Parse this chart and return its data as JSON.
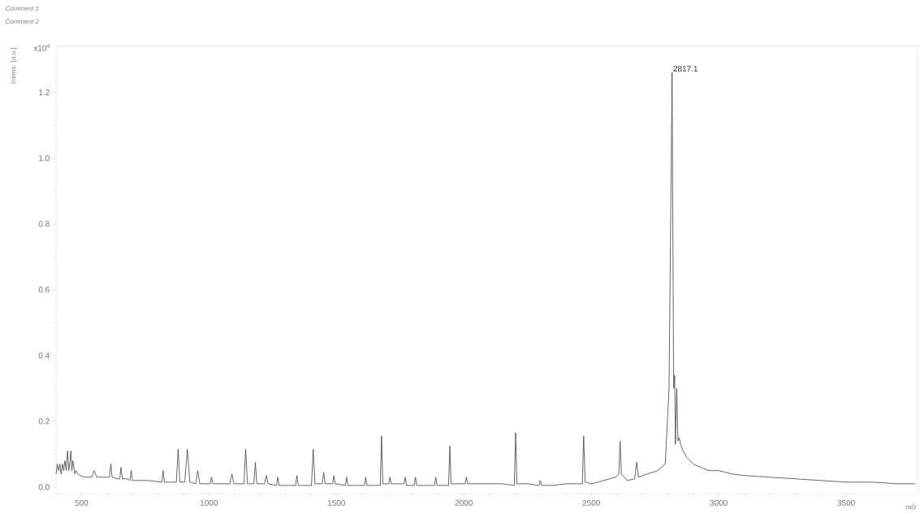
{
  "chart_data": {
    "type": "line",
    "title": "Comment 1",
    "subtitle": "Comment 2",
    "xlabel": "m/z",
    "ylabel": "Intens. [a.u.]",
    "annotations": [
      "x10$^{4}$",
      {
        "text": "2817.1",
        "x": 2817.1,
        "y": 1.26
      }
    ],
    "xlim": [
      400,
      3780
    ],
    "ylim": [
      -0.02,
      1.34
    ],
    "xticks": [
      500,
      1000,
      1500,
      2000,
      2500,
      3000,
      3500
    ],
    "yticks": [
      {
        "value": 0,
        "label": "0.0"
      },
      {
        "value": 0.2,
        "label": "0.2"
      },
      {
        "value": 0.4,
        "label": "0.4"
      },
      {
        "value": 0.6,
        "label": "0.6"
      },
      {
        "value": 0.8,
        "label": "0.8"
      },
      {
        "value": 1.0,
        "label": "1.0"
      },
      {
        "value": 1.2,
        "label": "1.2"
      }
    ],
    "grid": false,
    "marker": "none",
    "line_style": "solid",
    "series": [
      {
        "color": "#404040",
        "x": [
          400,
          405,
          410,
          415,
          420,
          425,
          430,
          435,
          440,
          445,
          450,
          455,
          458,
          462,
          466,
          470,
          474,
          478,
          485,
          495,
          510,
          540,
          550,
          560,
          590,
          610,
          615,
          620,
          640,
          650,
          655,
          660,
          680,
          690,
          695,
          700,
          760,
          815,
          820,
          825,
          872,
          879,
          886,
          905,
          915,
          925,
          948,
          956,
          964,
          1005,
          1010,
          1015,
          1082,
          1090,
          1098,
          1137,
          1144,
          1151,
          1176,
          1182,
          1188,
          1218,
          1225,
          1232,
          1265,
          1270,
          1275,
          1340,
          1345,
          1350,
          1402,
          1409,
          1416,
          1444,
          1450,
          1456,
          1485,
          1490,
          1495,
          1535,
          1540,
          1545,
          1610,
          1615,
          1620,
          1672,
          1677,
          1682,
          1705,
          1710,
          1715,
          1765,
          1770,
          1775,
          1805,
          1810,
          1815,
          1885,
          1890,
          1895,
          1940,
          1945,
          1950,
          2005,
          2010,
          2015,
          2100,
          2150,
          2198,
          2203,
          2208,
          2250,
          2295,
          2300,
          2305,
          2350,
          2400,
          2465,
          2470,
          2476,
          2500,
          2550,
          2595,
          2608,
          2613,
          2618,
          2640,
          2670,
          2678,
          2685,
          2720,
          2760,
          2790,
          2805,
          2817,
          2823,
          2827,
          2830,
          2835,
          2840,
          2845,
          2850,
          2860,
          2875,
          2900,
          2930,
          2960,
          3000,
          3050,
          3100,
          3200,
          3300,
          3400,
          3500,
          3600,
          3700,
          3770
        ],
        "values": [
          0.04,
          0.07,
          0.05,
          0.07,
          0.04,
          0.07,
          0.05,
          0.08,
          0.05,
          0.11,
          0.05,
          0.08,
          0.11,
          0.05,
          0.08,
          0.06,
          0.04,
          0.05,
          0.04,
          0.035,
          0.03,
          0.03,
          0.05,
          0.03,
          0.03,
          0.03,
          0.07,
          0.03,
          0.025,
          0.025,
          0.06,
          0.025,
          0.025,
          0.02,
          0.05,
          0.02,
          0.02,
          0.015,
          0.05,
          0.015,
          0.015,
          0.115,
          0.015,
          0.015,
          0.115,
          0.015,
          0.01,
          0.05,
          0.01,
          0.01,
          0.03,
          0.01,
          0.01,
          0.04,
          0.01,
          0.01,
          0.115,
          0.01,
          0.01,
          0.075,
          0.01,
          0.01,
          0.035,
          0.01,
          0.005,
          0.03,
          0.005,
          0.005,
          0.035,
          0.005,
          0.005,
          0.115,
          0.01,
          0.01,
          0.045,
          0.01,
          0.01,
          0.035,
          0.01,
          0.005,
          0.03,
          0.005,
          0.005,
          0.03,
          0.005,
          0.005,
          0.155,
          0.01,
          0.01,
          0.03,
          0.01,
          0.01,
          0.03,
          0.005,
          0.005,
          0.03,
          0.005,
          0.005,
          0.03,
          0.005,
          0.005,
          0.125,
          0.01,
          0.01,
          0.03,
          0.01,
          0.01,
          0.01,
          0.005,
          0.165,
          0.01,
          0.01,
          0.005,
          0.02,
          0.005,
          0.005,
          0.01,
          0.01,
          0.155,
          0.015,
          0.01,
          0.02,
          0.03,
          0.04,
          0.14,
          0.04,
          0.02,
          0.025,
          0.075,
          0.03,
          0.04,
          0.05,
          0.07,
          0.3,
          1.26,
          0.3,
          0.34,
          0.13,
          0.3,
          0.14,
          0.15,
          0.13,
          0.11,
          0.09,
          0.07,
          0.06,
          0.05,
          0.05,
          0.04,
          0.035,
          0.03,
          0.025,
          0.02,
          0.015,
          0.015,
          0.01,
          0.01
        ]
      }
    ]
  }
}
